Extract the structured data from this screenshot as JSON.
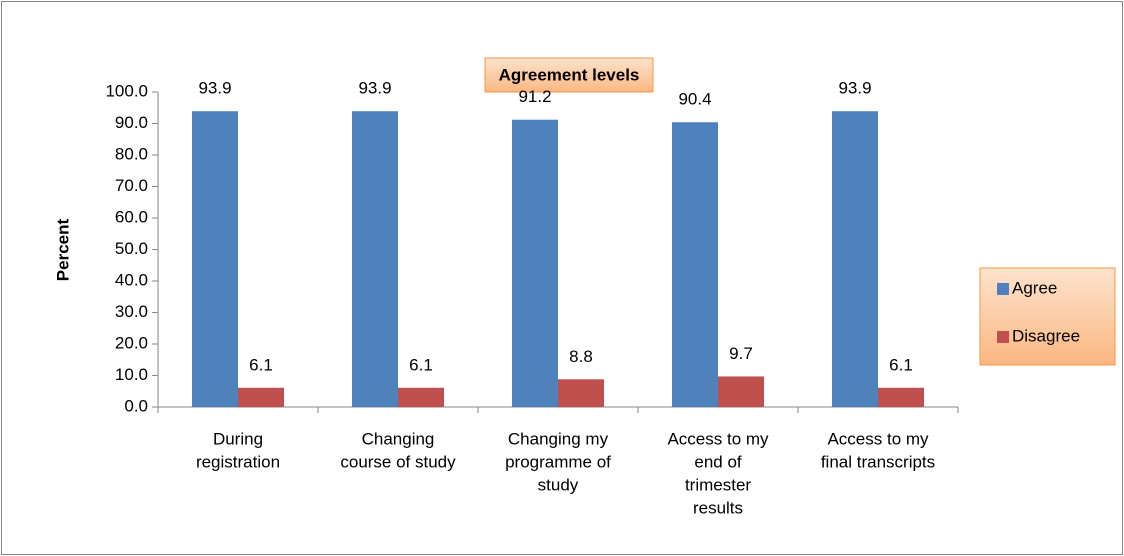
{
  "chart_data": {
    "type": "bar",
    "title": "Agreement levels",
    "y_label": "Percent",
    "categories": [
      [
        "During",
        "registration"
      ],
      [
        "Changing",
        "course of study"
      ],
      [
        "Changing my",
        "programme of",
        "study"
      ],
      [
        "Access to my",
        "end of",
        "trimester",
        "results"
      ],
      [
        "Access to my",
        "final transcripts"
      ]
    ],
    "series": [
      {
        "name": "Agree",
        "color": "#4f81bd",
        "values": [
          93.9,
          93.9,
          91.2,
          90.4,
          93.9
        ]
      },
      {
        "name": "Disagree",
        "color": "#c0504d",
        "values": [
          6.1,
          6.1,
          8.8,
          9.7,
          6.1
        ]
      }
    ],
    "ylim": [
      0,
      100
    ],
    "yticks": [
      {
        "value": 0,
        "label": "0.0"
      },
      {
        "value": 10,
        "label": "10.0"
      },
      {
        "value": 20,
        "label": "20.0"
      },
      {
        "value": 30,
        "label": "30.0"
      },
      {
        "value": 40,
        "label": "40.0"
      },
      {
        "value": 50,
        "label": "50.0"
      },
      {
        "value": 60,
        "label": "60.0"
      },
      {
        "value": 70,
        "label": "70.0"
      },
      {
        "value": 80,
        "label": "80.0"
      },
      {
        "value": 90,
        "label": "90.0"
      },
      {
        "value": 100,
        "label": "100.0"
      }
    ],
    "legend": "right"
  }
}
